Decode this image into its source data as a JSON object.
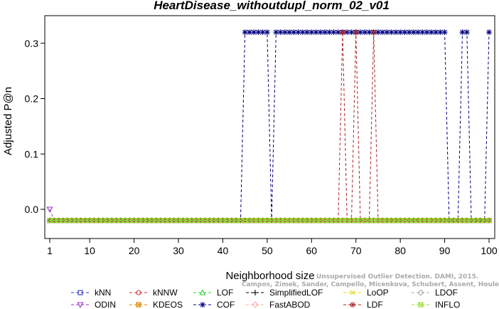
{
  "chart_data": {
    "type": "line",
    "title": "HeartDisease_withoutdupl_norm_02_v01",
    "xlabel": "Neighborhood size",
    "ylabel": "Adjusted P@n",
    "xlim": [
      1,
      100
    ],
    "ylim": [
      -0.05,
      0.34
    ],
    "xticks": [
      1,
      10,
      20,
      30,
      40,
      50,
      60,
      70,
      80,
      90,
      100
    ],
    "yticks": [
      0.0,
      0.1,
      0.2,
      0.3
    ],
    "ytick_labels": [
      "0.0",
      "0.1",
      "0.2",
      "0.3"
    ],
    "grid": false,
    "legend_position": "bottom",
    "low_value": -0.02,
    "series": [
      {
        "name": "kNN",
        "color": "#3333cc",
        "marker": "square",
        "points": []
      },
      {
        "name": "kNNW",
        "color": "#cc3333",
        "marker": "circle",
        "points": []
      },
      {
        "name": "LOF",
        "color": "#33cc33",
        "marker": "triangle",
        "points": []
      },
      {
        "name": "SimplifiedLOF",
        "color": "#000000",
        "marker": "plus",
        "points": []
      },
      {
        "name": "LoOP",
        "color": "#dddd00",
        "marker": "x",
        "points": []
      },
      {
        "name": "LDOF",
        "color": "#aaaaaa",
        "marker": "diamond",
        "points": []
      },
      {
        "name": "ODIN",
        "color": "#9933cc",
        "marker": "triangle-down",
        "points": [
          [
            1,
            0.0
          ]
        ]
      },
      {
        "name": "KDEOS",
        "color": "#dd8800",
        "marker": "square-x",
        "points": []
      },
      {
        "name": "COF",
        "color": "#000080",
        "marker": "asterisk",
        "points": [
          [
            45,
            0.32
          ],
          [
            46,
            0.32
          ],
          [
            47,
            0.32
          ],
          [
            48,
            0.32
          ],
          [
            49,
            0.32
          ],
          [
            50,
            0.32
          ],
          [
            52,
            0.32
          ],
          [
            53,
            0.32
          ],
          [
            54,
            0.32
          ],
          [
            55,
            0.32
          ],
          [
            56,
            0.32
          ],
          [
            57,
            0.32
          ],
          [
            58,
            0.32
          ],
          [
            59,
            0.32
          ],
          [
            60,
            0.32
          ],
          [
            61,
            0.32
          ],
          [
            62,
            0.32
          ],
          [
            63,
            0.32
          ],
          [
            64,
            0.32
          ],
          [
            65,
            0.32
          ],
          [
            66,
            0.32
          ],
          [
            67,
            0.32
          ],
          [
            68,
            0.32
          ],
          [
            69,
            0.32
          ],
          [
            70,
            0.32
          ],
          [
            71,
            0.32
          ],
          [
            72,
            0.32
          ],
          [
            73,
            0.32
          ],
          [
            74,
            0.32
          ],
          [
            75,
            0.32
          ],
          [
            76,
            0.32
          ],
          [
            77,
            0.32
          ],
          [
            78,
            0.32
          ],
          [
            79,
            0.32
          ],
          [
            80,
            0.32
          ],
          [
            81,
            0.32
          ],
          [
            82,
            0.32
          ],
          [
            83,
            0.32
          ],
          [
            84,
            0.32
          ],
          [
            85,
            0.32
          ],
          [
            86,
            0.32
          ],
          [
            87,
            0.32
          ],
          [
            88,
            0.32
          ],
          [
            89,
            0.32
          ],
          [
            90,
            0.32
          ],
          [
            94,
            0.32
          ],
          [
            95,
            0.32
          ],
          [
            100,
            0.32
          ]
        ]
      },
      {
        "name": "FastABOD",
        "color": "#ffaaaa",
        "marker": "diamond",
        "points": []
      },
      {
        "name": "LDF",
        "color": "#aa2222",
        "marker": "circle-filled",
        "points": [
          [
            67,
            0.32
          ],
          [
            70,
            0.32
          ],
          [
            74,
            0.32
          ]
        ]
      },
      {
        "name": "INFLO",
        "color": "#99dd33",
        "marker": "square-x",
        "points": []
      }
    ]
  },
  "watermark": {
    "line1": "Unsupervised Outlier Detection. DAMI, 2015.",
    "line2": "Campos, Zimek, Sander, Campello, Micenkova, Schubert, Assent, Houle"
  }
}
